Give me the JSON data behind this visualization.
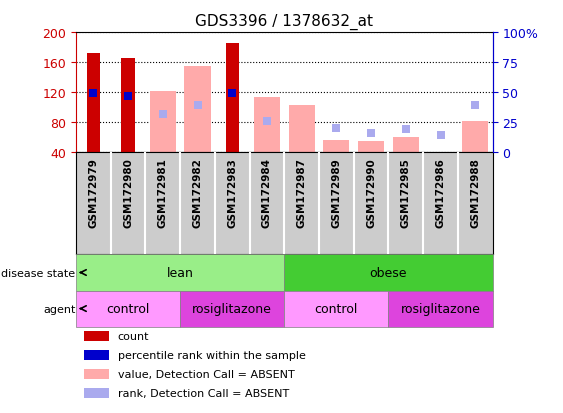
{
  "title": "GDS3396 / 1378632_at",
  "samples": [
    "GSM172979",
    "GSM172980",
    "GSM172981",
    "GSM172982",
    "GSM172983",
    "GSM172984",
    "GSM172987",
    "GSM172989",
    "GSM172990",
    "GSM172985",
    "GSM172986",
    "GSM172988"
  ],
  "ylim_left": [
    40,
    200
  ],
  "ylim_right": [
    0,
    100
  ],
  "yticks_left": [
    40,
    80,
    120,
    160,
    200
  ],
  "yticks_right": [
    0,
    25,
    50,
    75,
    100
  ],
  "count_values": [
    172,
    165,
    null,
    null,
    185,
    null,
    null,
    null,
    null,
    null,
    null,
    null
  ],
  "rank_values": [
    49,
    47,
    null,
    null,
    49,
    null,
    null,
    null,
    null,
    null,
    null,
    null
  ],
  "absent_value_bars": [
    null,
    null,
    122,
    155,
    null,
    113,
    103,
    57,
    55,
    60,
    40,
    82
  ],
  "absent_rank_squares": [
    null,
    null,
    91,
    103,
    null,
    82,
    null,
    null,
    null,
    null,
    null,
    null
  ],
  "absent_rank_only": [
    null,
    null,
    null,
    null,
    null,
    null,
    null,
    72,
    66,
    71,
    63,
    103
  ],
  "colors": {
    "red_bar": "#cc0000",
    "blue_square": "#0000cc",
    "pink_bar": "#ffaaaa",
    "light_blue_square": "#aaaaee",
    "lean_green": "#99ee88",
    "obese_green": "#44cc33",
    "control_mauve": "#ff99ff",
    "rosi_mauve": "#dd44dd",
    "bg_gray": "#cccccc",
    "ax_left": "#cc0000",
    "ax_right": "#0000cc"
  },
  "legend_items": [
    {
      "label": "count",
      "color": "#cc0000"
    },
    {
      "label": "percentile rank within the sample",
      "color": "#0000cc"
    },
    {
      "label": "value, Detection Call = ABSENT",
      "color": "#ffaaaa"
    },
    {
      "label": "rank, Detection Call = ABSENT",
      "color": "#aaaaee"
    }
  ]
}
